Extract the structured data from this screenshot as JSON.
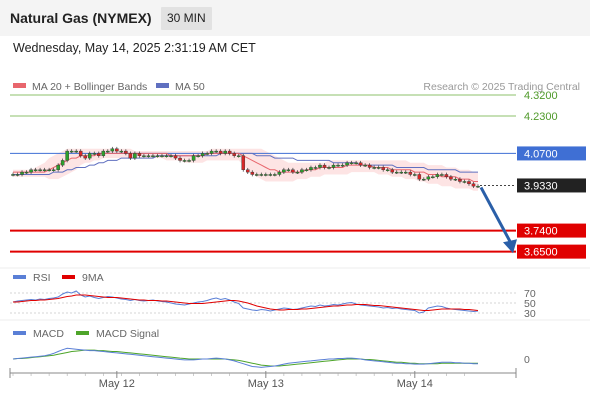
{
  "header": {
    "title": "Natural Gas (NYMEX)",
    "timeframe": "30 MIN",
    "datetime": "Wednesday, May 14, 2025 2:31:19 AM CET"
  },
  "colors": {
    "candle_up": "#2ca02c",
    "candle_down": "#d62728",
    "ma20": "#e8666d",
    "bollinger_fill": "#fde4e4",
    "ma50": "#6070c0",
    "resistance": "#8dc26b",
    "pivot": "#3f6fd4",
    "support": "#e00000",
    "current": "#222222",
    "arrow": "#2a5fa8",
    "rsi": "#5a7fd6",
    "rsi_ma": "#e00000",
    "macd": "#5a7fd6",
    "macd_signal": "#4ea52a"
  },
  "chart_data": [
    {
      "type": "line",
      "panel": "price",
      "legend": [
        {
          "name": "MA 20 + Bollinger Bands",
          "color": "#e8666d"
        },
        {
          "name": "MA 50",
          "color": "#6070c0"
        }
      ],
      "legend_placement": "top-left",
      "credit": "Research © 2025 Trading Central",
      "ylim": [
        3.5885,
        4.4012
      ],
      "levels": [
        {
          "value": 4.32,
          "label": "4.3200",
          "kind": "resistance"
        },
        {
          "value": 4.23,
          "label": "4.2300",
          "kind": "resistance"
        },
        {
          "value": 4.07,
          "label": "4.0700",
          "kind": "pivot"
        },
        {
          "value": 3.933,
          "label": "3.9330",
          "kind": "current"
        },
        {
          "value": 3.74,
          "label": "3.7400",
          "kind": "support"
        },
        {
          "value": 3.65,
          "label": "3.6500",
          "kind": "support"
        }
      ],
      "projection": {
        "from": 3.933,
        "to": 3.66,
        "direction": "down"
      },
      "close": [
        3.98,
        3.98,
        3.99,
        3.99,
        4.0,
        4.0,
        4.0,
        4.0,
        4.0,
        4.0,
        4.02,
        4.04,
        4.08,
        4.08,
        4.08,
        4.06,
        4.05,
        4.07,
        4.07,
        4.06,
        4.08,
        4.08,
        4.09,
        4.08,
        4.08,
        4.07,
        4.05,
        4.07,
        4.06,
        4.06,
        4.06,
        4.06,
        4.06,
        4.06,
        4.06,
        4.06,
        4.05,
        4.04,
        4.04,
        4.04,
        4.06,
        4.06,
        4.07,
        4.07,
        4.08,
        4.08,
        4.07,
        4.08,
        4.07,
        4.06,
        4.06,
        4.0,
        3.99,
        3.98,
        3.98,
        3.98,
        3.98,
        3.98,
        3.98,
        3.99,
        4.0,
        4.0,
        3.99,
        3.99,
        4.0,
        4.0,
        4.01,
        4.01,
        4.02,
        4.01,
        4.01,
        4.02,
        4.02,
        4.02,
        4.03,
        4.03,
        4.03,
        4.02,
        4.02,
        4.01,
        4.01,
        4.01,
        4.0,
        4.0,
        3.99,
        3.99,
        3.99,
        3.99,
        3.98,
        3.98,
        3.96,
        3.96,
        3.97,
        3.97,
        3.98,
        3.98,
        3.97,
        3.96,
        3.96,
        3.95,
        3.95,
        3.94,
        3.93,
        3.93
      ],
      "ma20": [
        3.99,
        3.99,
        3.99,
        3.99,
        3.99,
        3.99,
        3.99,
        3.99,
        4.0,
        4.01,
        4.02,
        4.03,
        4.04,
        4.05,
        4.05,
        4.06,
        4.06,
        4.06,
        4.06,
        4.07,
        4.07,
        4.07,
        4.07,
        4.07,
        4.07,
        4.07,
        4.07,
        4.07,
        4.07,
        4.07,
        4.07,
        4.07,
        4.07,
        4.07,
        4.07,
        4.06,
        4.06,
        4.06,
        4.06,
        4.06,
        4.06,
        4.06,
        4.06,
        4.07,
        4.07,
        4.07,
        4.07,
        4.07,
        4.07,
        4.07,
        4.07,
        4.06,
        4.05,
        4.04,
        4.03,
        4.02,
        4.01,
        4.0,
        4.0,
        3.99,
        3.99,
        3.99,
        3.99,
        3.99,
        3.99,
        4.0,
        4.0,
        4.0,
        4.01,
        4.01,
        4.01,
        4.01,
        4.01,
        4.01,
        4.02,
        4.02,
        4.02,
        4.02,
        4.02,
        4.02,
        4.01,
        4.01,
        4.01,
        4.01,
        4.0,
        4.0,
        4.0,
        4.0,
        4.0,
        3.99,
        3.99,
        3.99,
        3.98,
        3.98,
        3.98,
        3.97,
        3.97,
        3.97,
        3.97,
        3.96,
        3.96,
        3.96,
        3.95,
        3.95
      ],
      "ma50": [
        3.98,
        3.98,
        3.98,
        3.98,
        3.98,
        3.98,
        3.98,
        3.98,
        3.98,
        3.99,
        3.99,
        3.99,
        4.0,
        4.0,
        4.01,
        4.01,
        4.01,
        4.02,
        4.02,
        4.03,
        4.03,
        4.04,
        4.04,
        4.04,
        4.05,
        4.05,
        4.05,
        4.05,
        4.05,
        4.05,
        4.05,
        4.05,
        4.06,
        4.06,
        4.06,
        4.06,
        4.06,
        4.06,
        4.06,
        4.06,
        4.06,
        4.06,
        4.06,
        4.06,
        4.06,
        4.06,
        4.07,
        4.07,
        4.07,
        4.07,
        4.07,
        4.07,
        4.07,
        4.07,
        4.06,
        4.06,
        4.06,
        4.06,
        4.05,
        4.05,
        4.05,
        4.05,
        4.05,
        4.04,
        4.04,
        4.04,
        4.04,
        4.04,
        4.04,
        4.04,
        4.04,
        4.03,
        4.03,
        4.03,
        4.03,
        4.03,
        4.03,
        4.02,
        4.02,
        4.02,
        4.02,
        4.02,
        4.02,
        4.02,
        4.02,
        4.01,
        4.01,
        4.01,
        4.01,
        4.01,
        4.01,
        4.01,
        4.0,
        4.0,
        4.0,
        4.0,
        4.0,
        4.0,
        4.0,
        3.99,
        3.99,
        3.99,
        3.99,
        3.99
      ],
      "bollinger_upper": [
        4.0,
        4.0,
        4.0,
        4.0,
        4.0,
        4.01,
        4.02,
        4.03,
        4.05,
        4.06,
        4.07,
        4.08,
        4.09,
        4.09,
        4.09,
        4.09,
        4.09,
        4.09,
        4.09,
        4.09,
        4.09,
        4.09,
        4.09,
        4.09,
        4.09,
        4.09,
        4.09,
        4.08,
        4.08,
        4.08,
        4.08,
        4.08,
        4.08,
        4.08,
        4.08,
        4.08,
        4.08,
        4.08,
        4.08,
        4.08,
        4.08,
        4.08,
        4.08,
        4.08,
        4.09,
        4.09,
        4.09,
        4.09,
        4.09,
        4.09,
        4.09,
        4.09,
        4.09,
        4.09,
        4.09,
        4.09,
        4.08,
        4.07,
        4.06,
        4.05,
        4.04,
        4.03,
        4.03,
        4.03,
        4.03,
        4.03,
        4.03,
        4.03,
        4.03,
        4.03,
        4.04,
        4.04,
        4.04,
        4.04,
        4.04,
        4.04,
        4.04,
        4.04,
        4.04,
        4.04,
        4.04,
        4.04,
        4.04,
        4.04,
        4.04,
        4.04,
        4.04,
        4.04,
        4.03,
        4.03,
        4.03,
        4.03,
        4.02,
        4.02,
        4.02,
        4.02,
        4.01,
        4.01,
        4.01,
        4.0,
        4.0,
        4.0,
        3.99,
        3.99
      ],
      "bollinger_lower": [
        3.97,
        3.97,
        3.97,
        3.97,
        3.97,
        3.97,
        3.97,
        3.97,
        3.96,
        3.96,
        3.96,
        3.97,
        3.98,
        3.99,
        4.0,
        4.02,
        4.03,
        4.03,
        4.04,
        4.04,
        4.05,
        4.05,
        4.05,
        4.05,
        4.05,
        4.05,
        4.05,
        4.05,
        4.05,
        4.05,
        4.05,
        4.05,
        4.05,
        4.05,
        4.04,
        4.04,
        4.04,
        4.04,
        4.03,
        4.03,
        4.03,
        4.03,
        4.03,
        4.04,
        4.04,
        4.04,
        4.04,
        4.04,
        4.04,
        4.04,
        4.04,
        4.02,
        4.0,
        3.98,
        3.97,
        3.96,
        3.95,
        3.95,
        3.95,
        3.95,
        3.95,
        3.95,
        3.95,
        3.96,
        3.96,
        3.96,
        3.97,
        3.97,
        3.97,
        3.98,
        3.98,
        3.98,
        3.98,
        3.98,
        3.98,
        3.99,
        3.99,
        3.99,
        3.99,
        3.99,
        3.99,
        3.98,
        3.98,
        3.98,
        3.97,
        3.97,
        3.97,
        3.96,
        3.96,
        3.96,
        3.95,
        3.95,
        3.94,
        3.94,
        3.94,
        3.93,
        3.93,
        3.93,
        3.92,
        3.92,
        3.92,
        3.92,
        3.91,
        3.91
      ]
    },
    {
      "type": "line",
      "panel": "rsi",
      "legend": [
        {
          "name": "RSI",
          "color": "#5a7fd6"
        },
        {
          "name": "9MA",
          "color": "#e00000"
        }
      ],
      "ylim": [
        20,
        80
      ],
      "levels": [
        {
          "value": 70,
          "label": "70"
        },
        {
          "value": 50,
          "label": "50"
        },
        {
          "value": 30,
          "label": "30"
        }
      ],
      "rsi": [
        52,
        54,
        55,
        56,
        57,
        56,
        58,
        57,
        59,
        60,
        62,
        68,
        72,
        70,
        74,
        66,
        62,
        64,
        61,
        59,
        61,
        63,
        62,
        60,
        58,
        57,
        55,
        57,
        55,
        54,
        55,
        56,
        54,
        53,
        52,
        50,
        48,
        47,
        46,
        48,
        50,
        52,
        53,
        55,
        58,
        60,
        57,
        59,
        56,
        52,
        49,
        40,
        38,
        36,
        35,
        37,
        36,
        34,
        36,
        38,
        40,
        39,
        37,
        38,
        40,
        42,
        44,
        43,
        46,
        44,
        45,
        47,
        46,
        48,
        50,
        51,
        48,
        46,
        45,
        44,
        43,
        42,
        40,
        41,
        39,
        40,
        38,
        37,
        36,
        35,
        30,
        32,
        40,
        42,
        44,
        43,
        40,
        38,
        37,
        36,
        35,
        34,
        33,
        34
      ],
      "rsi_ma": [
        52,
        52,
        53,
        54,
        55,
        55,
        56,
        56,
        57,
        58,
        59,
        61,
        63,
        64,
        66,
        66,
        66,
        65,
        64,
        63,
        62,
        61,
        61,
        61,
        60,
        59,
        58,
        57,
        56,
        56,
        55,
        55,
        55,
        54,
        54,
        53,
        52,
        51,
        50,
        49,
        49,
        49,
        49,
        50,
        51,
        52,
        53,
        54,
        55,
        55,
        54,
        52,
        50,
        47,
        44,
        42,
        40,
        38,
        37,
        36,
        36,
        37,
        37,
        37,
        38,
        38,
        39,
        40,
        41,
        42,
        43,
        44,
        44,
        45,
        46,
        46,
        47,
        47,
        47,
        46,
        45,
        45,
        44,
        43,
        42,
        41,
        40,
        39,
        38,
        37,
        36,
        35,
        35,
        36,
        37,
        38,
        38,
        38,
        38,
        38,
        37,
        37,
        36,
        35
      ]
    },
    {
      "type": "line",
      "panel": "macd",
      "legend": [
        {
          "name": "MACD",
          "color": "#5a7fd6"
        },
        {
          "name": "MACD Signal",
          "color": "#4ea52a"
        }
      ],
      "zero_label": "0",
      "ylim": [
        -0.03,
        0.03
      ],
      "macd": [
        0.0,
        0.001,
        0.002,
        0.003,
        0.004,
        0.005,
        0.006,
        0.007,
        0.009,
        0.012,
        0.016,
        0.02,
        0.023,
        0.022,
        0.021,
        0.02,
        0.019,
        0.018,
        0.018,
        0.017,
        0.016,
        0.015,
        0.014,
        0.013,
        0.012,
        0.011,
        0.01,
        0.009,
        0.008,
        0.007,
        0.006,
        0.005,
        0.004,
        0.003,
        0.002,
        0.001,
        0.0,
        -0.001,
        -0.002,
        -0.002,
        -0.002,
        -0.001,
        0.0,
        0.0,
        0.001,
        0.002,
        0.001,
        0.0,
        -0.002,
        -0.004,
        -0.007,
        -0.01,
        -0.013,
        -0.016,
        -0.017,
        -0.018,
        -0.017,
        -0.016,
        -0.015,
        -0.013,
        -0.011,
        -0.009,
        -0.008,
        -0.007,
        -0.006,
        -0.005,
        -0.004,
        -0.003,
        -0.002,
        -0.001,
        0.0,
        0.0,
        0.001,
        0.001,
        0.002,
        0.002,
        0.001,
        0.0,
        -0.002,
        -0.003,
        -0.004,
        -0.005,
        -0.006,
        -0.007,
        -0.008,
        -0.009,
        -0.009,
        -0.01,
        -0.01,
        -0.011,
        -0.011,
        -0.011,
        -0.01,
        -0.009,
        -0.008,
        -0.007,
        -0.007,
        -0.007,
        -0.008,
        -0.008,
        -0.009,
        -0.009,
        -0.01,
        -0.01
      ],
      "macd_signal": [
        0.0,
        0.001,
        0.001,
        0.002,
        0.003,
        0.004,
        0.005,
        0.006,
        0.007,
        0.008,
        0.01,
        0.012,
        0.014,
        0.016,
        0.017,
        0.018,
        0.019,
        0.019,
        0.019,
        0.018,
        0.018,
        0.017,
        0.016,
        0.016,
        0.015,
        0.014,
        0.013,
        0.012,
        0.011,
        0.01,
        0.009,
        0.008,
        0.007,
        0.006,
        0.005,
        0.004,
        0.003,
        0.002,
        0.001,
        0.0,
        0.0,
        0.0,
        0.0,
        0.0,
        0.0,
        0.0,
        0.0,
        0.0,
        -0.001,
        -0.002,
        -0.003,
        -0.005,
        -0.007,
        -0.009,
        -0.011,
        -0.013,
        -0.014,
        -0.015,
        -0.015,
        -0.015,
        -0.014,
        -0.013,
        -0.012,
        -0.011,
        -0.01,
        -0.009,
        -0.008,
        -0.007,
        -0.006,
        -0.005,
        -0.004,
        -0.003,
        -0.002,
        -0.001,
        0.0,
        0.0,
        0.0,
        0.0,
        -0.001,
        -0.001,
        -0.002,
        -0.003,
        -0.004,
        -0.005,
        -0.006,
        -0.007,
        -0.007,
        -0.008,
        -0.009,
        -0.009,
        -0.01,
        -0.01,
        -0.01,
        -0.01,
        -0.01,
        -0.009,
        -0.009,
        -0.009,
        -0.009,
        -0.009,
        -0.009,
        -0.009,
        -0.009,
        -0.009
      ]
    }
  ],
  "x_axis": {
    "labels": [
      {
        "text": "May 12",
        "index": 23
      },
      {
        "text": "May 13",
        "index": 56
      },
      {
        "text": "May 14",
        "index": 89
      }
    ]
  }
}
